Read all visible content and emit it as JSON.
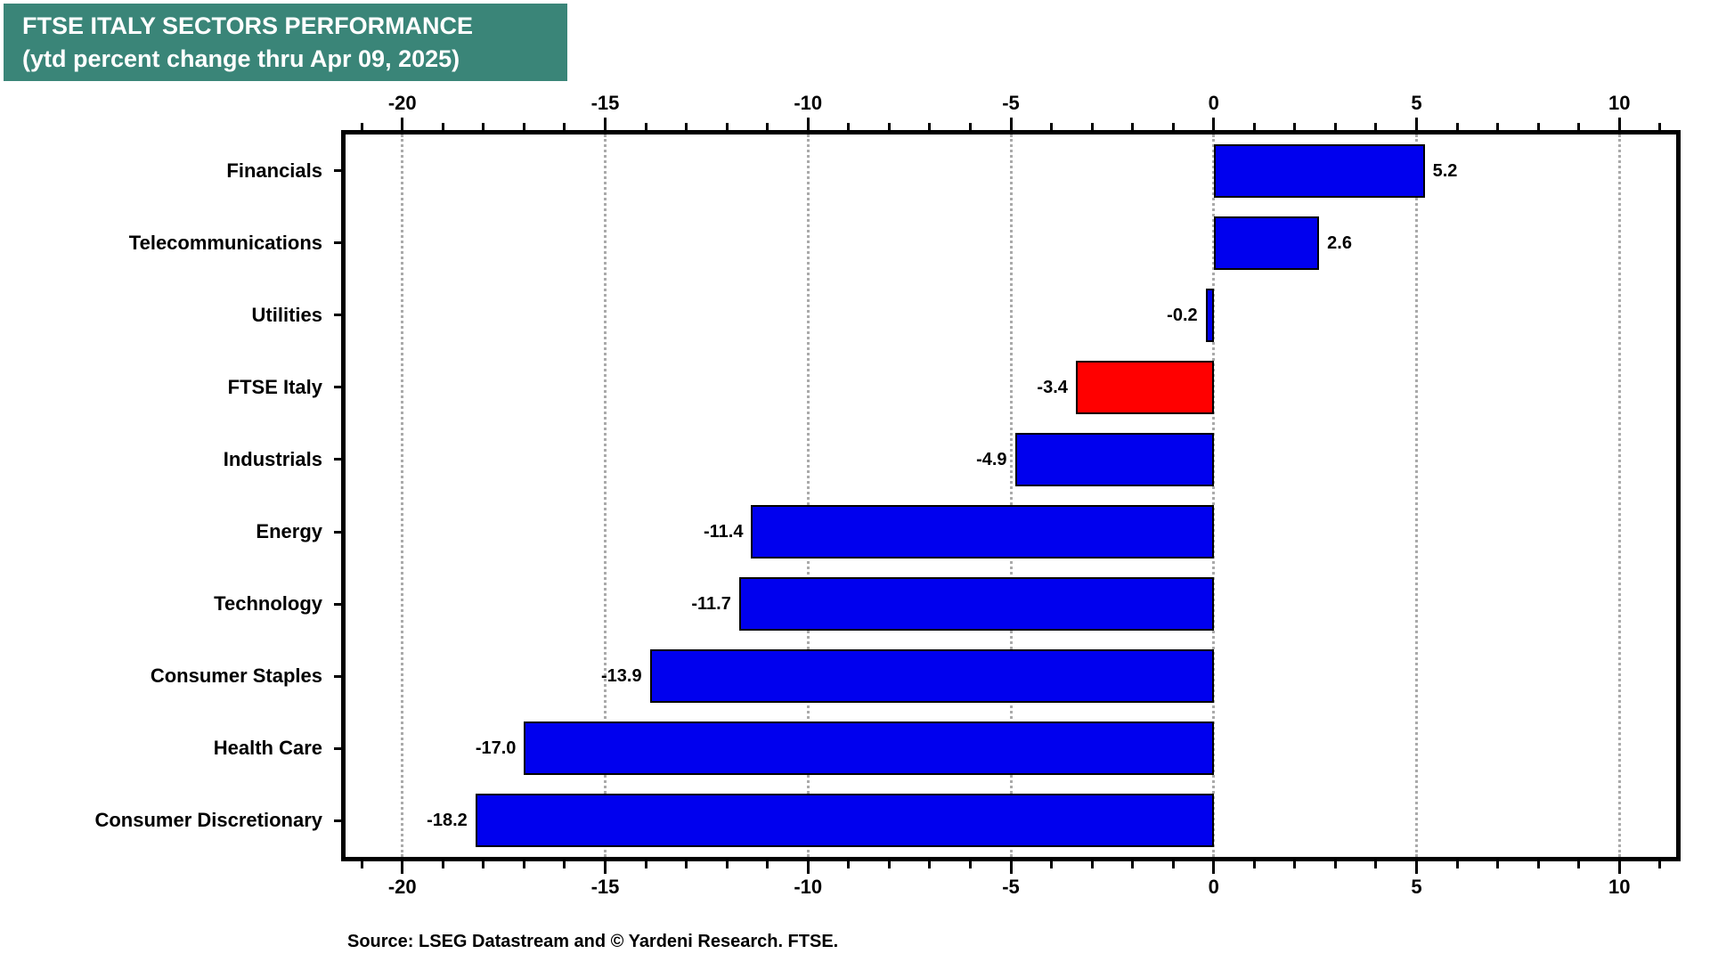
{
  "header": {
    "title_line1": "FTSE ITALY SECTORS PERFORMANCE",
    "title_line2": "(ytd percent change thru Apr 09, 2025)"
  },
  "footer": {
    "source": "Source: LSEG Datastream and © Yardeni Research. FTSE."
  },
  "colors": {
    "title_bg": "#3A8578",
    "title_text": "#FFFFFF",
    "bar_blue": "#0000EE",
    "bar_highlight_red": "#FF0000",
    "gridline_gray": "#AAAAAA",
    "axis_black": "#000000",
    "background": "#FFFFFF"
  },
  "chart_data": {
    "type": "bar",
    "orientation": "horizontal",
    "title": "FTSE ITALY SECTORS PERFORMANCE",
    "subtitle": "(ytd percent change thru Apr 09, 2025)",
    "categories": [
      "Financials",
      "Telecommunications",
      "Utilities",
      "FTSE Italy",
      "Industrials",
      "Energy",
      "Technology",
      "Consumer Staples",
      "Health Care",
      "Consumer Discretionary"
    ],
    "values": [
      5.2,
      2.6,
      -0.2,
      -3.4,
      -4.9,
      -11.4,
      -11.7,
      -13.9,
      -17.0,
      -18.2
    ],
    "value_labels": [
      "5.2",
      "2.6",
      "-0.2",
      "-3.4",
      "-4.9",
      "-11.4",
      "-11.7",
      "-13.9",
      "-17.0",
      "-18.2"
    ],
    "highlight_category": "FTSE Italy",
    "xlabel": "",
    "ylabel": "",
    "xlim": [
      -21.4,
      11.4
    ],
    "x_major_ticks": [
      -20,
      -15,
      -10,
      -5,
      0,
      5,
      10
    ],
    "x_tick_labels": [
      "-20",
      "-15",
      "-10",
      "-5",
      "0",
      "5",
      "10"
    ],
    "x_minor_tick_step": 1,
    "grid": "vertical dotted at major ticks, both axes mirrored (top and bottom tick labels)",
    "legend": "none"
  }
}
